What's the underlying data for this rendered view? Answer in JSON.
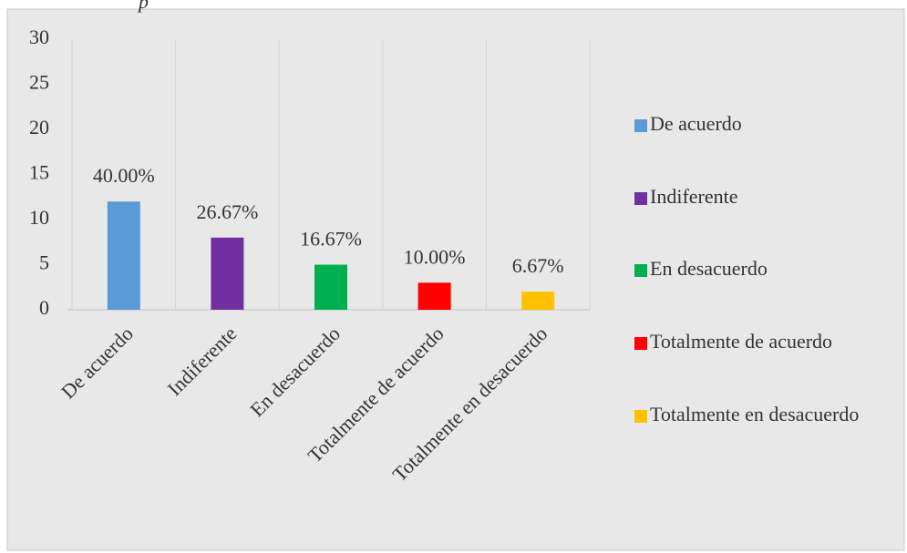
{
  "chart_data": {
    "type": "bar",
    "caption": "p",
    "categories": [
      "De acuerdo",
      "Indiferente",
      "En desacuerdo",
      "Totalmente de acuerdo",
      "Totalmente en desacuerdo"
    ],
    "values": [
      12,
      8,
      5,
      3,
      2
    ],
    "value_labels": [
      "40.00%",
      "26.67%",
      "16.67%",
      "10.00%",
      "6.67%"
    ],
    "colors": [
      "#5b9bd5",
      "#7030a0",
      "#00b050",
      "#ff0000",
      "#ffc000"
    ],
    "ylim": [
      0,
      30
    ],
    "yticks": [
      0,
      5,
      10,
      15,
      20,
      25,
      30
    ],
    "legend": "right"
  }
}
